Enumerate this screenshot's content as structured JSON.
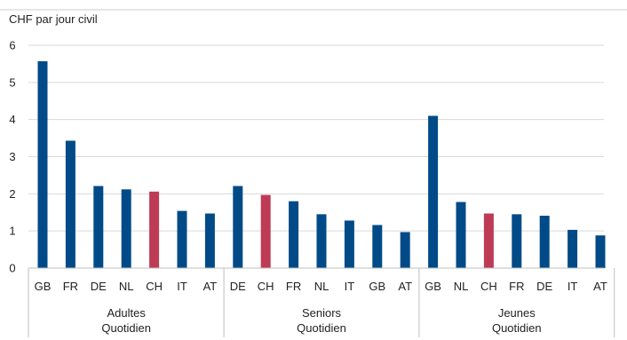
{
  "chart_data": {
    "type": "bar",
    "title": "",
    "ylabel": "CHF par jour civil",
    "xlabel": "",
    "ylim": [
      0,
      6
    ],
    "yticks": [
      0,
      1,
      2,
      3,
      4,
      5,
      6
    ],
    "grid": true,
    "legend": "none",
    "colors": {
      "default": "#004b87",
      "highlight": "#be3b55"
    },
    "groups": [
      {
        "label_line1": "Adultes",
        "label_line2": "Quotidien",
        "categories": [
          "GB",
          "FR",
          "DE",
          "NL",
          "CH",
          "IT",
          "AT"
        ],
        "values": [
          5.57,
          3.43,
          2.21,
          2.12,
          2.06,
          1.54,
          1.47
        ],
        "highlight_index": 4
      },
      {
        "label_line1": "Seniors",
        "label_line2": "Quotidien",
        "categories": [
          "DE",
          "CH",
          "FR",
          "NL",
          "IT",
          "GB",
          "AT"
        ],
        "values": [
          2.21,
          1.97,
          1.8,
          1.45,
          1.28,
          1.16,
          0.97
        ],
        "highlight_index": 1
      },
      {
        "label_line1": "Jeunes",
        "label_line2": "Quotidien",
        "categories": [
          "GB",
          "NL",
          "CH",
          "FR",
          "DE",
          "IT",
          "AT"
        ],
        "values": [
          4.1,
          1.78,
          1.47,
          1.45,
          1.41,
          1.03,
          0.88
        ],
        "highlight_index": 2
      }
    ]
  }
}
